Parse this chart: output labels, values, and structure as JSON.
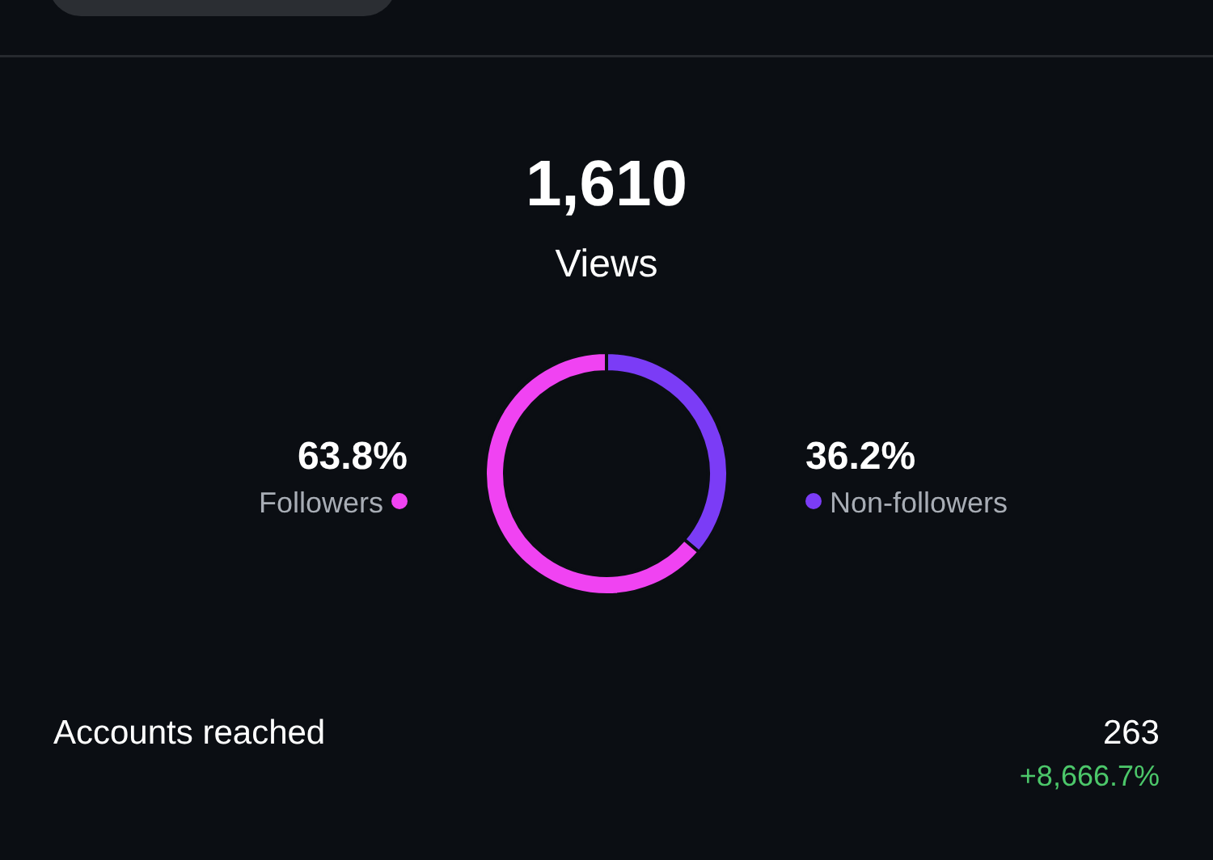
{
  "chart_data": {
    "type": "donut",
    "title": "1,610",
    "subtitle": "Views",
    "categories": [
      "Non-followers",
      "Followers"
    ],
    "values": [
      36.2,
      63.8
    ],
    "colors": [
      "#7b3cf6",
      "#f043f2"
    ],
    "value_labels": [
      "36.2%",
      "63.8%"
    ],
    "annotations": [
      "Accounts reached",
      "263",
      "+8,666.7%"
    ]
  }
}
